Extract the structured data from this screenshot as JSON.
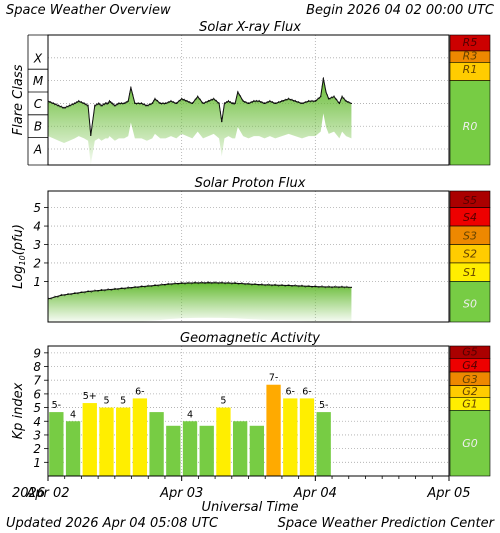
{
  "header": {
    "title": "Space Weather Overview",
    "begin": "Begin 2026 04 02 00:00 UTC",
    "updated": "Updated 2026 Apr 04 05:08 UTC",
    "center": "Space Weather Prediction Center"
  },
  "xaxis": {
    "label": "Universal Time",
    "year": "2026",
    "ticks": [
      {
        "label": "Apr 02",
        "day": 0
      },
      {
        "label": "Apr 03",
        "day": 1
      },
      {
        "label": "Apr 04",
        "day": 2
      },
      {
        "label": "Apr 05",
        "day": 3
      }
    ],
    "range_days": [
      0,
      3
    ]
  },
  "chart_data": [
    {
      "type": "line",
      "title": "Solar X-ray Flux",
      "ylabel": "Flare Class",
      "ylim": [
        -8.7,
        -3.0
      ],
      "class_ticks": [
        {
          "label": "A",
          "value": -8
        },
        {
          "label": "B",
          "value": -7
        },
        {
          "label": "C",
          "value": -6
        },
        {
          "label": "M",
          "value": -5
        },
        {
          "label": "X",
          "value": -4
        }
      ],
      "scale_labels": [
        {
          "label": "R5",
          "value": -3.3,
          "color": "#cc0000"
        },
        {
          "label": "R3",
          "value": -3.9,
          "color": "#ee8800"
        },
        {
          "label": "R1",
          "value": -4.5,
          "color": "#ffcc00"
        },
        {
          "label": "R0",
          "value": -7.0,
          "color": "#77cc44"
        }
      ],
      "scale_bands": [
        {
          "from": -3.0,
          "to": -3.7,
          "color": "#cc0000"
        },
        {
          "from": -3.7,
          "to": -4.2,
          "color": "#ee8800"
        },
        {
          "from": -4.2,
          "to": -5.0,
          "color": "#ffcc00"
        },
        {
          "from": -5.0,
          "to": -8.7,
          "color": "#77cc44"
        }
      ],
      "x": [
        0,
        0.04,
        0.08,
        0.12,
        0.16,
        0.2,
        0.23,
        0.27,
        0.3,
        0.32,
        0.35,
        0.38,
        0.4,
        0.43,
        0.45,
        0.46,
        0.48,
        0.5,
        0.53,
        0.57,
        0.6,
        0.62,
        0.65,
        0.7,
        0.74,
        0.78,
        0.8,
        0.84,
        0.88,
        0.92,
        0.96,
        1.0,
        1.04,
        1.08,
        1.12,
        1.16,
        1.2,
        1.24,
        1.28,
        1.3,
        1.32,
        1.35,
        1.38,
        1.4,
        1.42,
        1.46,
        1.5,
        1.54,
        1.58,
        1.62,
        1.66,
        1.7,
        1.75,
        1.8,
        1.85,
        1.9,
        1.95,
        2.0,
        2.04,
        2.06,
        2.08,
        2.1,
        2.14,
        2.18,
        2.2,
        2.23,
        2.27
      ],
      "values": [
        -5.9,
        -6.0,
        -6.1,
        -6.2,
        -6.1,
        -6.0,
        -5.9,
        -6.0,
        -6.1,
        -7.4,
        -6.1,
        -6.0,
        -6.1,
        -6.0,
        -6.0,
        -5.9,
        -6.0,
        -6.1,
        -6.0,
        -6.0,
        -5.9,
        -5.3,
        -6.0,
        -6.0,
        -6.1,
        -6.0,
        -5.8,
        -6.0,
        -6.0,
        -5.9,
        -6.0,
        -5.8,
        -5.9,
        -6.0,
        -5.7,
        -6.0,
        -5.9,
        -5.8,
        -6.0,
        -6.8,
        -6.0,
        -5.9,
        -6.0,
        -6.0,
        -5.5,
        -5.9,
        -6.0,
        -5.9,
        -5.9,
        -6.0,
        -5.9,
        -6.0,
        -5.9,
        -5.8,
        -5.9,
        -6.0,
        -5.9,
        -5.9,
        -5.7,
        -4.9,
        -5.5,
        -5.8,
        -5.7,
        -6.0,
        -5.7,
        -5.9,
        -6.0
      ]
    },
    {
      "type": "line",
      "title": "Solar Proton Flux",
      "ylabel": "Log10(pfu)",
      "ylim": [
        -1.2,
        5.9
      ],
      "yticks": [
        1,
        2,
        3,
        4,
        5
      ],
      "scale_labels": [
        {
          "label": "S5",
          "value": 5.4,
          "color": "#aa0000"
        },
        {
          "label": "S4",
          "value": 4.5,
          "color": "#ee0000"
        },
        {
          "label": "S3",
          "value": 3.5,
          "color": "#ee8800"
        },
        {
          "label": "S2",
          "value": 2.5,
          "color": "#ffcc00"
        },
        {
          "label": "S1",
          "value": 1.5,
          "color": "#ffee00"
        },
        {
          "label": "S0",
          "value": -0.2,
          "color": "#77cc44"
        }
      ],
      "scale_bands": [
        {
          "from": 5.9,
          "to": 5.0,
          "color": "#aa0000"
        },
        {
          "from": 5.0,
          "to": 4.0,
          "color": "#ee0000"
        },
        {
          "from": 4.0,
          "to": 3.0,
          "color": "#ee8800"
        },
        {
          "from": 3.0,
          "to": 2.0,
          "color": "#ffcc00"
        },
        {
          "from": 2.0,
          "to": 1.0,
          "color": "#ffee00"
        },
        {
          "from": 1.0,
          "to": -1.2,
          "color": "#77cc44"
        }
      ],
      "x": [
        0,
        0.1,
        0.2,
        0.3,
        0.4,
        0.5,
        0.6,
        0.7,
        0.8,
        0.9,
        1.0,
        1.1,
        1.2,
        1.3,
        1.4,
        1.5,
        1.6,
        1.7,
        1.8,
        1.9,
        2.0,
        2.1,
        2.2,
        2.27
      ],
      "values": [
        0.05,
        0.25,
        0.35,
        0.45,
        0.52,
        0.58,
        0.65,
        0.72,
        0.78,
        0.85,
        0.9,
        0.92,
        0.93,
        0.92,
        0.9,
        0.86,
        0.82,
        0.8,
        0.78,
        0.75,
        0.72,
        0.7,
        0.7,
        0.68
      ]
    },
    {
      "type": "bar",
      "title": "Geomagnetic Activity",
      "ylabel": "Kp index",
      "ylim": [
        0,
        9.5
      ],
      "yticks": [
        1,
        2,
        3,
        4,
        5,
        6,
        7,
        8,
        9
      ],
      "categories_start_day": [
        0,
        0.125,
        0.25,
        0.375,
        0.5,
        0.625,
        0.75,
        0.875,
        1.0,
        1.125,
        1.25,
        1.375,
        1.5,
        1.625,
        1.75,
        1.875,
        2.0
      ],
      "values": [
        4.67,
        4.0,
        5.33,
        5.0,
        5.0,
        5.67,
        4.67,
        3.67,
        4.0,
        3.67,
        5.0,
        4.0,
        3.67,
        6.67,
        5.67,
        5.67,
        4.67
      ],
      "labels": [
        "5-",
        "4",
        "5+",
        "5",
        "5",
        "6-",
        "",
        "",
        "4",
        "",
        "5",
        "",
        "",
        "7-",
        "6-",
        "6-",
        "5-"
      ],
      "colors": [
        "#77cc44",
        "#77cc44",
        "#ffee00",
        "#ffee00",
        "#ffee00",
        "#ffee00",
        "#77cc44",
        "#77cc44",
        "#77cc44",
        "#77cc44",
        "#ffee00",
        "#77cc44",
        "#77cc44",
        "#ffaa00",
        "#ffee00",
        "#ffee00",
        "#77cc44"
      ],
      "scale_labels": [
        {
          "label": "G5",
          "value": 9.1,
          "color": "#aa0000"
        },
        {
          "label": "G4",
          "value": 8.1,
          "color": "#ee0000"
        },
        {
          "label": "G3",
          "value": 7.1,
          "color": "#ee8800"
        },
        {
          "label": "G2",
          "value": 6.2,
          "color": "#ffcc00"
        },
        {
          "label": "G1",
          "value": 5.3,
          "color": "#ffee00"
        },
        {
          "label": "G0",
          "value": 2.4,
          "color": "#77cc44"
        }
      ],
      "scale_bands": [
        {
          "from": 9.5,
          "to": 8.6,
          "color": "#aa0000"
        },
        {
          "from": 8.6,
          "to": 7.6,
          "color": "#ee0000"
        },
        {
          "from": 7.6,
          "to": 6.6,
          "color": "#ee8800"
        },
        {
          "from": 6.6,
          "to": 5.75,
          "color": "#ffcc00"
        },
        {
          "from": 5.75,
          "to": 4.8,
          "color": "#ffee00"
        },
        {
          "from": 4.8,
          "to": 0,
          "color": "#77cc44"
        }
      ]
    }
  ]
}
